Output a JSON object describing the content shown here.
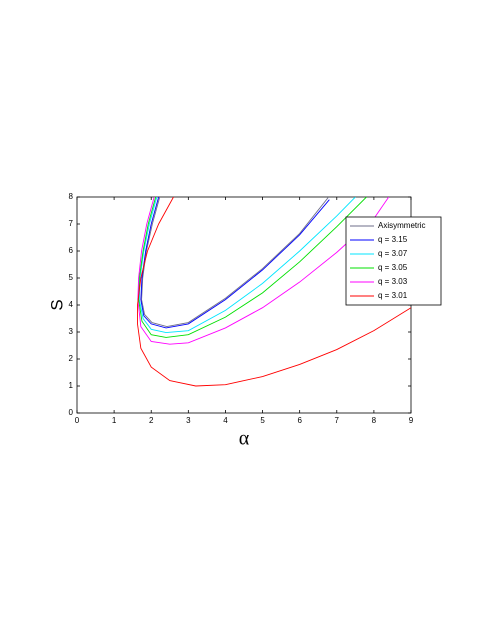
{
  "chart_data": {
    "type": "line",
    "xlabel": "α",
    "ylabel": "S",
    "xlim": [
      0,
      9
    ],
    "ylim": [
      0,
      8
    ],
    "xticks": [
      0,
      1,
      2,
      3,
      4,
      5,
      6,
      7,
      8,
      9
    ],
    "yticks": [
      0,
      1,
      2,
      3,
      4,
      5,
      6,
      7,
      8
    ],
    "legend": "upper right",
    "series": [
      {
        "name": "Axisymmetric",
        "color": "#6e6e8a",
        "x": [
          2.23,
          2.03,
          1.87,
          1.77,
          1.74,
          1.82,
          2.02,
          2.42,
          3,
          4,
          5,
          6,
          6.78
        ],
        "values": [
          8,
          7,
          6,
          5,
          4.2,
          3.65,
          3.35,
          3.2,
          3.35,
          4.25,
          5.35,
          6.65,
          8
        ]
      },
      {
        "name": "q = 3.15",
        "color": "#0000ff",
        "x": [
          2.2,
          2.0,
          1.85,
          1.75,
          1.72,
          1.8,
          2.0,
          2.4,
          3,
          4,
          5,
          6,
          6.8
        ],
        "values": [
          8,
          7,
          6,
          5,
          4.2,
          3.6,
          3.3,
          3.15,
          3.3,
          4.2,
          5.3,
          6.6,
          7.9
        ]
      },
      {
        "name": "q = 3.07",
        "color": "#00e5ff",
        "x": [
          2.15,
          1.95,
          1.8,
          1.7,
          1.68,
          1.78,
          2.0,
          2.4,
          3,
          4,
          5,
          6,
          7,
          7.5
        ],
        "values": [
          8,
          7,
          6,
          5,
          4.2,
          3.5,
          3.1,
          2.98,
          3.05,
          3.8,
          4.8,
          6.0,
          7.3,
          8
        ]
      },
      {
        "name": "q = 3.05",
        "color": "#00e000",
        "x": [
          2.12,
          1.92,
          1.78,
          1.68,
          1.66,
          1.75,
          2.0,
          2.4,
          3,
          4,
          5,
          6,
          7,
          7.8
        ],
        "values": [
          8,
          7,
          6,
          5,
          4.2,
          3.4,
          2.9,
          2.8,
          2.9,
          3.55,
          4.45,
          5.6,
          6.9,
          8
        ]
      },
      {
        "name": "q = 3.03",
        "color": "#ff00ff",
        "x": [
          2.08,
          1.88,
          1.74,
          1.66,
          1.64,
          1.72,
          2.0,
          2.5,
          3,
          4,
          5,
          6,
          7,
          8,
          8.4
        ],
        "values": [
          8,
          7,
          6,
          5,
          4.2,
          3.2,
          2.65,
          2.55,
          2.6,
          3.15,
          3.9,
          4.85,
          5.95,
          7.2,
          8
        ]
      },
      {
        "name": "q = 3.01",
        "color": "#ff0000",
        "x": [
          2.6,
          2.2,
          1.9,
          1.72,
          1.63,
          1.63,
          1.72,
          2.0,
          2.5,
          3.2,
          4,
          5,
          6,
          7,
          8,
          9
        ],
        "values": [
          8,
          7,
          6,
          5,
          4,
          3.3,
          2.4,
          1.7,
          1.2,
          1.0,
          1.05,
          1.35,
          1.8,
          2.35,
          3.05,
          3.9
        ]
      }
    ]
  }
}
